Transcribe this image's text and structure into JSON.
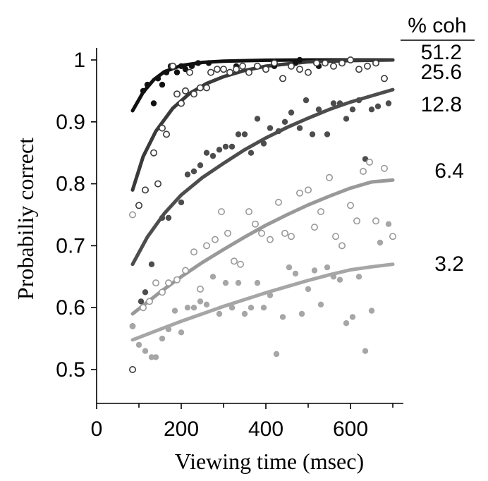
{
  "chart_data": {
    "type": "scatter",
    "xlabel": "Viewing time (msec)",
    "ylabel": "Probabiliy correct",
    "xlim": [
      0,
      800
    ],
    "ylim": [
      0.46,
      1.04
    ],
    "x_ticks": [
      "0",
      "200",
      "400",
      "600"
    ],
    "x_tick_values": [
      0,
      200,
      400,
      600
    ],
    "y_ticks": [
      "0.5",
      "0.6",
      "0.7",
      "0.8",
      "0.9",
      "1"
    ],
    "y_tick_values": [
      0.5,
      0.6,
      0.7,
      0.8,
      0.9,
      1.0
    ],
    "legend_title": "% coh",
    "legend_placement": "right",
    "series": [
      {
        "name": "51.2",
        "color": "#111111",
        "marker": "filled",
        "curve": [
          [
            85,
            0.918
          ],
          [
            110,
            0.948
          ],
          [
            135,
            0.968
          ],
          [
            160,
            0.981
          ],
          [
            200,
            0.991
          ],
          [
            250,
            0.996
          ],
          [
            300,
            0.998
          ],
          [
            400,
            0.9995
          ],
          [
            500,
            1.0
          ],
          [
            600,
            1.0
          ],
          [
            700,
            1.0
          ]
        ],
        "points": [
          [
            85,
            0.57
          ],
          [
            110,
            0.95
          ],
          [
            120,
            0.96
          ],
          [
            135,
            0.93
          ],
          [
            145,
            0.97
          ],
          [
            155,
            0.96
          ],
          [
            165,
            0.98
          ],
          [
            175,
            0.99
          ],
          [
            190,
            0.98
          ],
          [
            200,
            0.99
          ],
          [
            210,
            0.985
          ],
          [
            225,
            0.99
          ],
          [
            240,
            0.995
          ],
          [
            265,
            0.995
          ],
          [
            330,
            0.99
          ],
          [
            420,
            0.99
          ],
          [
            470,
            0.995
          ],
          [
            480,
            1.0
          ],
          [
            525,
            0.99
          ]
        ]
      },
      {
        "name": "25.6",
        "color": "#3a3a3a",
        "marker": "open",
        "curve": [
          [
            85,
            0.79
          ],
          [
            110,
            0.844
          ],
          [
            140,
            0.885
          ],
          [
            180,
            0.922
          ],
          [
            220,
            0.946
          ],
          [
            260,
            0.962
          ],
          [
            300,
            0.973
          ],
          [
            350,
            0.983
          ],
          [
            400,
            0.99
          ],
          [
            500,
            0.997
          ],
          [
            600,
            0.999
          ],
          [
            700,
            1.0
          ]
        ],
        "points": [
          [
            85,
            0.5
          ],
          [
            100,
            0.765
          ],
          [
            115,
            0.79
          ],
          [
            135,
            0.85
          ],
          [
            145,
            0.8
          ],
          [
            155,
            0.89
          ],
          [
            165,
            0.88
          ],
          [
            180,
            0.99
          ],
          [
            190,
            0.945
          ],
          [
            200,
            0.93
          ],
          [
            210,
            0.95
          ],
          [
            220,
            0.98
          ],
          [
            230,
            0.945
          ],
          [
            245,
            0.955
          ],
          [
            260,
            0.955
          ],
          [
            270,
            0.98
          ],
          [
            285,
            0.985
          ],
          [
            300,
            0.985
          ],
          [
            315,
            0.98
          ],
          [
            330,
            0.985
          ],
          [
            345,
            0.99
          ],
          [
            360,
            0.98
          ],
          [
            380,
            0.99
          ],
          [
            400,
            0.985
          ],
          [
            420,
            0.995
          ],
          [
            440,
            0.97
          ],
          [
            460,
            0.99
          ],
          [
            480,
            0.985
          ],
          [
            500,
            0.98
          ],
          [
            520,
            0.995
          ],
          [
            540,
            0.995
          ],
          [
            560,
            0.99
          ],
          [
            580,
            0.995
          ],
          [
            600,
            1.0
          ],
          [
            620,
            0.985
          ],
          [
            640,
            0.99
          ],
          [
            660,
            0.995
          ],
          [
            680,
            0.97
          ]
        ]
      },
      {
        "name": "12.8",
        "color": "#4d4d4d",
        "marker": "filled",
        "curve": [
          [
            85,
            0.67
          ],
          [
            120,
            0.714
          ],
          [
            160,
            0.752
          ],
          [
            200,
            0.782
          ],
          [
            250,
            0.81
          ],
          [
            300,
            0.833
          ],
          [
            350,
            0.855
          ],
          [
            400,
            0.874
          ],
          [
            450,
            0.891
          ],
          [
            500,
            0.906
          ],
          [
            550,
            0.92
          ],
          [
            600,
            0.932
          ],
          [
            650,
            0.942
          ],
          [
            700,
            0.952
          ]
        ],
        "points": [
          [
            85,
            0.57
          ],
          [
            105,
            0.61
          ],
          [
            115,
            0.625
          ],
          [
            130,
            0.67
          ],
          [
            155,
            0.745
          ],
          [
            170,
            0.745
          ],
          [
            200,
            0.77
          ],
          [
            215,
            0.815
          ],
          [
            230,
            0.82
          ],
          [
            245,
            0.83
          ],
          [
            260,
            0.85
          ],
          [
            275,
            0.845
          ],
          [
            290,
            0.855
          ],
          [
            305,
            0.86
          ],
          [
            320,
            0.86
          ],
          [
            335,
            0.88
          ],
          [
            350,
            0.88
          ],
          [
            365,
            0.85
          ],
          [
            380,
            0.905
          ],
          [
            395,
            0.865
          ],
          [
            410,
            0.89
          ],
          [
            430,
            0.885
          ],
          [
            445,
            0.9
          ],
          [
            460,
            0.915
          ],
          [
            480,
            0.89
          ],
          [
            495,
            0.935
          ],
          [
            510,
            0.88
          ],
          [
            525,
            0.92
          ],
          [
            545,
            0.88
          ],
          [
            560,
            0.93
          ],
          [
            575,
            0.93
          ],
          [
            590,
            0.905
          ],
          [
            605,
            0.92
          ],
          [
            620,
            0.935
          ],
          [
            635,
            0.84
          ],
          [
            650,
            0.92
          ],
          [
            665,
            0.925
          ],
          [
            690,
            0.93
          ]
        ]
      },
      {
        "name": "6.4",
        "color": "#999999",
        "marker": "open",
        "curve": [
          [
            85,
            0.59
          ],
          [
            150,
            0.625
          ],
          [
            200,
            0.65
          ],
          [
            250,
            0.673
          ],
          [
            300,
            0.694
          ],
          [
            350,
            0.714
          ],
          [
            400,
            0.733
          ],
          [
            450,
            0.75
          ],
          [
            500,
            0.766
          ],
          [
            550,
            0.78
          ],
          [
            600,
            0.793
          ],
          [
            650,
            0.803
          ],
          [
            700,
            0.806
          ]
        ],
        "points": [
          [
            85,
            0.75
          ],
          [
            110,
            0.6
          ],
          [
            125,
            0.61
          ],
          [
            140,
            0.64
          ],
          [
            155,
            0.625
          ],
          [
            170,
            0.64
          ],
          [
            190,
            0.645
          ],
          [
            210,
            0.66
          ],
          [
            230,
            0.69
          ],
          [
            245,
            0.63
          ],
          [
            260,
            0.7
          ],
          [
            280,
            0.71
          ],
          [
            295,
            0.755
          ],
          [
            310,
            0.72
          ],
          [
            325,
            0.675
          ],
          [
            340,
            0.67
          ],
          [
            360,
            0.755
          ],
          [
            375,
            0.735
          ],
          [
            390,
            0.72
          ],
          [
            410,
            0.71
          ],
          [
            430,
            0.77
          ],
          [
            445,
            0.72
          ],
          [
            460,
            0.715
          ],
          [
            480,
            0.785
          ],
          [
            500,
            0.79
          ],
          [
            515,
            0.73
          ],
          [
            530,
            0.755
          ],
          [
            550,
            0.81
          ],
          [
            565,
            0.715
          ],
          [
            580,
            0.7
          ],
          [
            600,
            0.765
          ],
          [
            615,
            0.74
          ],
          [
            630,
            0.82
          ],
          [
            645,
            0.835
          ],
          [
            660,
            0.74
          ],
          [
            680,
            0.825
          ],
          [
            700,
            0.715
          ]
        ]
      },
      {
        "name": "3.2",
        "color": "#a6a6a6",
        "marker": "filled",
        "curve": [
          [
            85,
            0.548
          ],
          [
            150,
            0.565
          ],
          [
            200,
            0.578
          ],
          [
            250,
            0.59
          ],
          [
            300,
            0.602
          ],
          [
            350,
            0.613
          ],
          [
            400,
            0.624
          ],
          [
            450,
            0.634
          ],
          [
            500,
            0.644
          ],
          [
            550,
            0.653
          ],
          [
            600,
            0.661
          ],
          [
            650,
            0.666
          ],
          [
            700,
            0.67
          ]
        ],
        "points": [
          [
            85,
            0.57
          ],
          [
            100,
            0.54
          ],
          [
            115,
            0.53
          ],
          [
            130,
            0.52
          ],
          [
            140,
            0.52
          ],
          [
            155,
            0.55
          ],
          [
            170,
            0.565
          ],
          [
            185,
            0.595
          ],
          [
            200,
            0.56
          ],
          [
            215,
            0.6
          ],
          [
            230,
            0.6
          ],
          [
            245,
            0.61
          ],
          [
            260,
            0.605
          ],
          [
            275,
            0.65
          ],
          [
            290,
            0.59
          ],
          [
            305,
            0.64
          ],
          [
            320,
            0.6
          ],
          [
            335,
            0.64
          ],
          [
            350,
            0.59
          ],
          [
            365,
            0.6
          ],
          [
            380,
            0.64
          ],
          [
            395,
            0.6
          ],
          [
            410,
            0.62
          ],
          [
            425,
            0.525
          ],
          [
            440,
            0.585
          ],
          [
            455,
            0.665
          ],
          [
            470,
            0.655
          ],
          [
            485,
            0.59
          ],
          [
            500,
            0.63
          ],
          [
            515,
            0.66
          ],
          [
            530,
            0.605
          ],
          [
            545,
            0.665
          ],
          [
            560,
            0.65
          ],
          [
            575,
            0.645
          ],
          [
            590,
            0.575
          ],
          [
            605,
            0.585
          ],
          [
            620,
            0.65
          ],
          [
            635,
            0.53
          ],
          [
            650,
            0.595
          ],
          [
            670,
            0.705
          ],
          [
            690,
            0.735
          ]
        ]
      }
    ]
  }
}
